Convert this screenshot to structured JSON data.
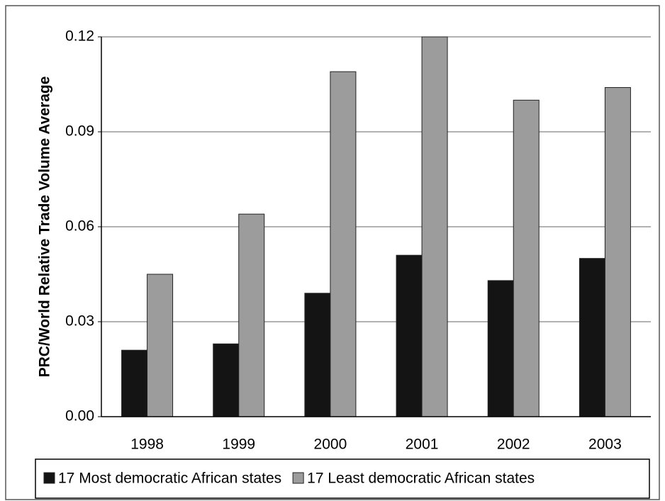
{
  "chart_data": {
    "type": "bar",
    "y_label": "PRC/World Relative Trade Volume Average",
    "categories": [
      "1998",
      "1999",
      "2000",
      "2001",
      "2002",
      "2003"
    ],
    "series": [
      {
        "name": "17 Most democratic African states",
        "color": "#141414",
        "values": [
          0.021,
          0.023,
          0.039,
          0.051,
          0.043,
          0.05
        ]
      },
      {
        "name": "17 Least democratic African states",
        "color": "#9c9c9c",
        "values": [
          0.045,
          0.064,
          0.109,
          0.12,
          0.1,
          0.104
        ]
      }
    ],
    "ylim": [
      0,
      0.12
    ],
    "yticks": [
      {
        "value": 0,
        "label": "0.00"
      },
      0.03,
      0.06,
      0.09,
      0.12
    ],
    "grid": true,
    "legend": "bottom"
  }
}
